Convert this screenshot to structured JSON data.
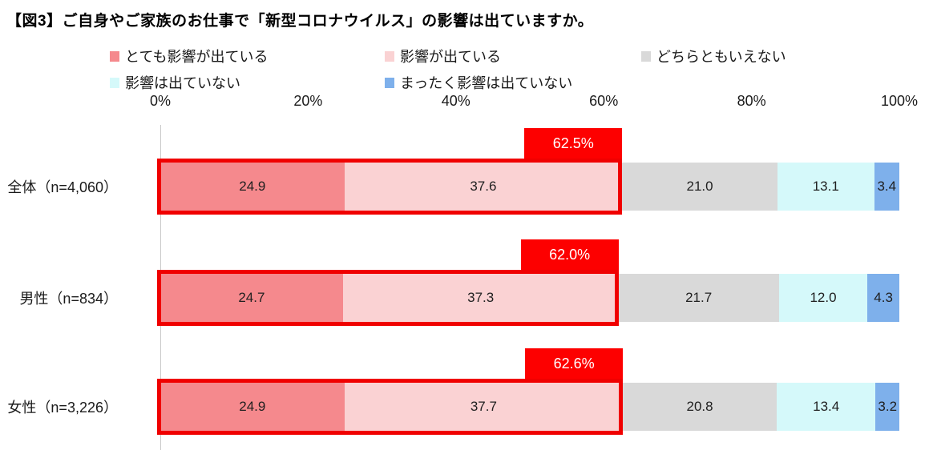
{
  "title": "【図3】ご自身やご家族のお仕事で「新型コロナウイルス」の影響は出ていますか。",
  "chart_data": {
    "type": "bar",
    "stacked": true,
    "orientation": "horizontal",
    "unit": "%",
    "xlim": [
      0,
      100
    ],
    "x_ticks": [
      "0%",
      "20%",
      "40%",
      "60%",
      "80%",
      "100%"
    ],
    "grid": "single vertical line at 0% only",
    "legend_position": "top",
    "highlight": "first two series outlined in red with red subtotal callout above each bar",
    "series": [
      {
        "name": "とても影響が出ている",
        "color": "#F5898D"
      },
      {
        "name": "影響が出ている",
        "color": "#FAD2D3"
      },
      {
        "name": "どちらともいえない",
        "color": "#D9D9D9"
      },
      {
        "name": "影響は出ていない",
        "color": "#D5F9FA"
      },
      {
        "name": "まったく影響は出ていない",
        "color": "#7EB0EB"
      }
    ],
    "categories": [
      "全体（n=4,060）",
      "男性（n=834）",
      "女性（n=3,226）"
    ],
    "rows": [
      {
        "label": "全体（n=4,060）",
        "values": [
          24.9,
          37.6,
          21.0,
          13.1,
          3.4
        ],
        "display": [
          "24.9",
          "37.6",
          "21.0",
          "13.1",
          "3.4"
        ],
        "subtotal": 62.5,
        "callout": "62.5%"
      },
      {
        "label": "男性（n=834）",
        "values": [
          24.7,
          37.3,
          21.7,
          12.0,
          4.3
        ],
        "display": [
          "24.7",
          "37.3",
          "21.7",
          "12.0",
          "4.3"
        ],
        "subtotal": 62.0,
        "callout": "62.0%"
      },
      {
        "label": "女性（n=3,226）",
        "values": [
          24.9,
          37.7,
          20.8,
          13.4,
          3.2
        ],
        "display": [
          "24.9",
          "37.7",
          "20.8",
          "13.4",
          "3.2"
        ],
        "subtotal": 62.6,
        "callout": "62.6%"
      }
    ],
    "callout_color": "#FD0000",
    "highlight_border_color": "#F00000"
  }
}
